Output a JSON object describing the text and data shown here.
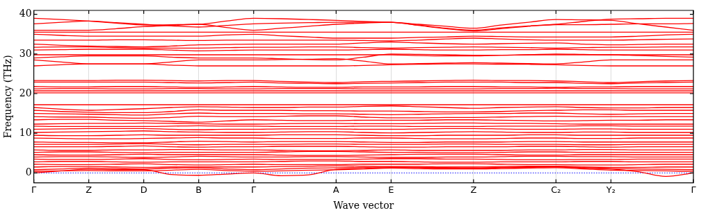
{
  "chart_data": {
    "type": "line",
    "xlabel": "Wave vector",
    "ylabel": "Frequency (THz)",
    "categories": [
      "Γ",
      null,
      "Z",
      null,
      "D",
      null,
      "B",
      null,
      "Γ",
      null,
      null,
      "A",
      null,
      "E",
      null,
      null,
      "Z",
      null,
      null,
      "C₂",
      null,
      "Y₂",
      null,
      null,
      "Γ"
    ],
    "ylim": [
      -2.5,
      41
    ],
    "yticks": [
      0,
      10,
      20,
      30,
      40
    ],
    "grid": "x",
    "legend": false,
    "marker": "none",
    "line_style": "solid",
    "ref_lines": [
      {
        "axis": "y",
        "value": 0,
        "color": "#0000ff",
        "line_style": "dotted"
      }
    ],
    "series": [
      {
        "color": "#ff0000",
        "values": [
          39,
          38.7,
          38.3,
          37.8,
          37.3,
          37.4,
          37.5,
          38.3,
          39,
          38.9,
          38.7,
          38.5,
          38.2,
          38,
          37.3,
          36.5,
          36,
          36.6,
          37.1,
          37.5,
          38.2,
          38.8,
          38.9,
          39,
          39
        ]
      },
      {
        "color": "#ff0000",
        "values": [
          37.6,
          38,
          38.3,
          37.9,
          37.5,
          37.1,
          36.8,
          37.2,
          37.6,
          37.8,
          37.9,
          38,
          38,
          38,
          37.2,
          36.4,
          35.8,
          36.4,
          37,
          37.4,
          37.4,
          37.5,
          37.6,
          37.6,
          37.7
        ]
      },
      {
        "color": "#ff0000",
        "values": [
          36,
          36,
          36,
          36.4,
          36.9,
          37.2,
          37.5,
          36.7,
          36,
          36.5,
          37,
          37.5,
          37.8,
          38,
          37.5,
          37,
          36.5,
          37.3,
          38,
          38.7,
          38.6,
          38.5,
          37.6,
          36.8,
          36
        ]
      },
      {
        "color": "#ff0000",
        "values": [
          35.5,
          35.5,
          35.5,
          35.5,
          35.5,
          35.5,
          35.5,
          35.5,
          35.5,
          35.5,
          35.5,
          35.5,
          35.5,
          35.5,
          35.5,
          35.5,
          35.5,
          35.5,
          35.5,
          35.5,
          35.5,
          35.5,
          35.5,
          35.5,
          35.5
        ]
      },
      {
        "color": "#ff0000",
        "values": [
          35,
          34.7,
          34.5,
          34.5,
          34.5,
          34.5,
          34.5,
          34.8,
          35,
          34.6,
          34.3,
          34,
          34,
          34,
          34.2,
          34.3,
          34.5,
          34.4,
          34.3,
          34.3,
          34.3,
          34.3,
          34.5,
          34.8,
          35
        ]
      },
      {
        "color": "#ff0000",
        "values": [
          33.5,
          33.5,
          33.5,
          33.6,
          33.6,
          33.5,
          33.4,
          33.5,
          33.5,
          33.5,
          33.5,
          33.5,
          33.4,
          33.3,
          33.5,
          33.8,
          34,
          33.8,
          33.6,
          33.5,
          33.5,
          33.5,
          33.6,
          33.7,
          33.8
        ]
      },
      {
        "color": "#ff0000",
        "values": [
          32.5,
          32.2,
          32,
          31.9,
          31.8,
          32,
          32.3,
          32.4,
          32.5,
          32.5,
          32.5,
          32.5,
          32.8,
          33,
          32.8,
          32.6,
          32.5,
          32.6,
          32.7,
          32.8,
          32.5,
          32.3,
          32.4,
          32.5,
          32.5
        ]
      },
      {
        "color": "#ff0000",
        "values": [
          31.7,
          31.8,
          31.8,
          31.6,
          31.5,
          31.5,
          31.5,
          31.6,
          31.7,
          31.7,
          31.8,
          31.8,
          31.6,
          31.5,
          31.6,
          31.7,
          31.8,
          31.7,
          31.6,
          31.5,
          31.6,
          31.7,
          31.7,
          31.8,
          31.8
        ]
      },
      {
        "color": "#ff0000",
        "values": [
          31,
          31.1,
          31.2,
          31.2,
          31.2,
          31,
          30.8,
          30.9,
          31,
          31,
          31,
          31,
          31.1,
          31.2,
          31.1,
          31,
          31,
          31.1,
          31.1,
          31.2,
          31.1,
          31,
          31,
          31,
          31
        ]
      },
      {
        "color": "#ff0000",
        "values": [
          29.8,
          29.8,
          29.8,
          29.8,
          29.8,
          29.8,
          29.8,
          29.8,
          29.8,
          29.8,
          29.8,
          29.8,
          29.8,
          29.8,
          29.6,
          29.5,
          29.5,
          29.7,
          29.8,
          30,
          29.9,
          29.8,
          29.8,
          29.8,
          29.8
        ]
      },
      {
        "color": "#ff0000",
        "values": [
          29,
          29.3,
          29.5,
          29.5,
          29.5,
          29.2,
          29,
          29,
          29,
          28.8,
          28.6,
          28.5,
          29.2,
          30,
          29.9,
          29.8,
          29.7,
          29.7,
          29.8,
          29.8,
          29.8,
          29.8,
          29.6,
          29.4,
          29.2
        ]
      },
      {
        "color": "#ff0000",
        "values": [
          28.5,
          28,
          27.5,
          27.5,
          27.5,
          28,
          28.5,
          28.5,
          28.5,
          28.6,
          28.7,
          28.8,
          28.2,
          27.5,
          27.6,
          27.7,
          27.8,
          27.7,
          27.6,
          27.5,
          28,
          28.5,
          28.5,
          28.5,
          28.5
        ]
      },
      {
        "color": "#ff0000",
        "values": [
          27,
          27.3,
          27.5,
          27.5,
          27.5,
          27.2,
          27,
          27,
          27,
          27,
          27,
          27,
          27.1,
          27.3,
          27.4,
          27.5,
          27.5,
          27.4,
          27.4,
          27.3,
          27.1,
          27,
          27,
          27,
          27
        ]
      },
      {
        "color": "#ff0000",
        "values": [
          23.3,
          23.3,
          23.3,
          23.4,
          23.4,
          23.3,
          23.2,
          23.3,
          23.3,
          23.1,
          22.9,
          22.8,
          23,
          23.1,
          23.2,
          23.3,
          23.4,
          23.3,
          23.3,
          23.2,
          23,
          22.8,
          23,
          23.2,
          23.3
        ]
      },
      {
        "color": "#ff0000",
        "values": [
          22.9,
          22.9,
          22.9,
          22.9,
          22.9,
          22.8,
          22.7,
          22.8,
          22.9,
          22.7,
          22.6,
          22.5,
          22.6,
          22.7,
          22.8,
          22.9,
          22.9,
          22.9,
          22.8,
          22.8,
          22.6,
          22.5,
          22.7,
          22.8,
          22.9
        ]
      },
      {
        "color": "#ff0000",
        "values": [
          21.8,
          21.7,
          21.7,
          21.8,
          21.8,
          21.7,
          21.6,
          21.7,
          21.8,
          21.7,
          21.6,
          21.6,
          21.7,
          21.7,
          21.7,
          21.8,
          21.8,
          21.7,
          21.7,
          21.6,
          21.7,
          21.7,
          21.8,
          21.8,
          21.8
        ]
      },
      {
        "color": "#ff0000",
        "values": [
          21.2,
          21.3,
          21.3,
          21.2,
          21.2,
          21.3,
          21.3,
          21.2,
          21.2,
          21.3,
          21.3,
          21.3,
          21.2,
          21.2,
          21.2,
          21.2,
          21.2,
          21.3,
          21.3,
          21.4,
          21.3,
          21.3,
          21.2,
          21.2,
          21.2
        ]
      },
      {
        "color": "#ff0000",
        "values": [
          20.7,
          20.7,
          20.7,
          20.7,
          20.7,
          20.7,
          20.7,
          20.7,
          20.7,
          20.7,
          20.7,
          20.7,
          20.7,
          20.7,
          20.7,
          20.7,
          20.7,
          20.7,
          20.7,
          20.7,
          20.7,
          20.7,
          20.7,
          20.7,
          20.7
        ]
      },
      {
        "color": "#ff0000",
        "values": [
          20.2,
          20.2,
          20.2,
          20.2,
          20.2,
          20.2,
          20.2,
          20.2,
          20.2,
          20.2,
          20.2,
          20.2,
          20.2,
          20.2,
          20.2,
          20.2,
          20.2,
          20.2,
          20.2,
          20.2,
          20.2,
          20.2,
          20.2,
          20.2,
          20.2
        ]
      },
      {
        "color": "#ff0000",
        "values": [
          17.2,
          17.2,
          17.2,
          17.2,
          17.2,
          17.2,
          17.2,
          17.2,
          17.2,
          17.2,
          17.2,
          17.2,
          17.2,
          17.2,
          17.2,
          17.2,
          17.2,
          17.2,
          17.2,
          17.2,
          17.2,
          17.2,
          17.2,
          17.2,
          17.2
        ]
      },
      {
        "color": "#ff0000",
        "values": [
          16.5,
          16.1,
          15.8,
          16,
          16.2,
          16.5,
          16.7,
          16.6,
          16.5,
          16.5,
          16.6,
          16.6,
          16.8,
          16.9,
          16.7,
          16.5,
          16.3,
          16.5,
          16.6,
          16.7,
          16.5,
          16.4,
          16.4,
          16.5,
          16.5
        ]
      },
      {
        "color": "#ff0000",
        "values": [
          15.8,
          15.5,
          15.3,
          15.2,
          15.2,
          15.5,
          15.9,
          15.8,
          15.8,
          15.8,
          15.7,
          15.7,
          15.6,
          15.6,
          15.5,
          15.4,
          15.4,
          15.5,
          15.7,
          15.8,
          15.9,
          15.9,
          15.8,
          15.8,
          15.8
        ]
      },
      {
        "color": "#ff0000",
        "values": [
          15,
          14.9,
          14.8,
          14.7,
          14.6,
          14.9,
          15.1,
          15,
          15,
          15,
          14.9,
          14.9,
          14.8,
          14.7,
          14.8,
          14.9,
          15,
          15,
          15.1,
          15.1,
          14.9,
          14.8,
          14.9,
          15,
          15
        ]
      },
      {
        "color": "#ff0000",
        "values": [
          14.2,
          14.1,
          14.1,
          13.9,
          13.8,
          14,
          14.3,
          14.2,
          14.2,
          14.3,
          14.4,
          14.4,
          14.1,
          13.9,
          13.9,
          14,
          14,
          14.1,
          14.2,
          14.3,
          14.2,
          14.2,
          14.2,
          14.2,
          14.2
        ]
      },
      {
        "color": "#ff0000",
        "values": [
          13.4,
          13.5,
          13.5,
          13.3,
          13.2,
          13,
          12.8,
          13.1,
          13.4,
          13.3,
          13.2,
          13.2,
          13.3,
          13.3,
          13.3,
          13.4,
          13.4,
          13.3,
          13.2,
          13.1,
          13.2,
          13.3,
          13.3,
          13.4,
          13.4
        ]
      },
      {
        "color": "#ff0000",
        "values": [
          12.3,
          12.4,
          12.5,
          12.5,
          12.6,
          12.5,
          12.4,
          12.3,
          12.3,
          12.4,
          12.5,
          12.5,
          12.4,
          12.4,
          12.5,
          12.6,
          12.6,
          12.5,
          12.5,
          12.4,
          12.3,
          12.3,
          12.3,
          12.3,
          12.3
        ]
      },
      {
        "color": "#ff0000",
        "values": [
          11.8,
          11.7,
          11.7,
          11.7,
          11.7,
          11.8,
          11.9,
          11.8,
          11.8,
          11.7,
          11.7,
          11.7,
          11.8,
          11.8,
          11.7,
          11.7,
          11.7,
          11.8,
          11.8,
          11.8,
          11.9,
          11.9,
          11.8,
          11.8,
          11.8
        ]
      },
      {
        "color": "#ff0000",
        "values": [
          11,
          11.1,
          11.2,
          11.2,
          11.2,
          11,
          10.9,
          11,
          11,
          11.1,
          11.1,
          11.1,
          11,
          11,
          11.1,
          11.2,
          11.2,
          11.1,
          11,
          11,
          11.1,
          11.1,
          11,
          11,
          11
        ]
      },
      {
        "color": "#ff0000",
        "values": [
          10.2,
          10.3,
          10.4,
          10.5,
          10.6,
          10.4,
          10.3,
          10.2,
          10.2,
          10.3,
          10.4,
          10.4,
          10.2,
          10.1,
          10.2,
          10.3,
          10.4,
          10.3,
          10.2,
          10.2,
          10.3,
          10.3,
          10.2,
          10.2,
          10.2
        ]
      },
      {
        "color": "#ff0000",
        "values": [
          9.5,
          9.4,
          9.4,
          9.5,
          9.6,
          9.5,
          9.5,
          9.5,
          9.5,
          9.6,
          9.6,
          9.6,
          9.5,
          9.4,
          9.4,
          9.5,
          9.5,
          9.5,
          9.6,
          9.6,
          9.5,
          9.5,
          9.5,
          9.5,
          9.5
        ]
      },
      {
        "color": "#ff0000",
        "values": [
          8.8,
          8.7,
          8.6,
          8.6,
          8.7,
          8.8,
          8.9,
          8.8,
          8.8,
          8.7,
          8.7,
          8.7,
          8.8,
          8.8,
          8.7,
          8.6,
          8.6,
          8.7,
          8.8,
          8.8,
          8.7,
          8.7,
          8.8,
          8.8,
          8.8
        ]
      },
      {
        "color": "#ff0000",
        "values": [
          7.8,
          7.7,
          7.7,
          7.6,
          7.6,
          7.8,
          8,
          7.9,
          7.8,
          7.9,
          7.9,
          7.9,
          7.8,
          7.7,
          7.7,
          7.8,
          7.8,
          7.8,
          7.9,
          7.9,
          7.8,
          7.8,
          7.8,
          7.8,
          7.8
        ]
      },
      {
        "color": "#ff0000",
        "values": [
          7.2,
          7.2,
          7.2,
          7.3,
          7.4,
          7.2,
          7.1,
          7.2,
          7.2,
          7.2,
          7.3,
          7.3,
          7.2,
          7.2,
          7.2,
          7.3,
          7.3,
          7.2,
          7.2,
          7.2,
          7.1,
          7.1,
          7.2,
          7.2,
          7.2
        ]
      },
      {
        "color": "#ff0000",
        "values": [
          6.6,
          6.6,
          6.6,
          6.7,
          6.8,
          6.6,
          6.5,
          6.6,
          6.6,
          6.7,
          6.7,
          6.7,
          6.6,
          6.5,
          6.5,
          6.6,
          6.6,
          6.6,
          6.7,
          6.7,
          6.6,
          6.5,
          6.6,
          6.6,
          6.6
        ]
      },
      {
        "color": "#ff0000",
        "values": [
          5.8,
          5.7,
          5.7,
          5.8,
          5.8,
          5.9,
          5.9,
          5.8,
          5.8,
          5.7,
          5.6,
          5.6,
          5.7,
          5.8,
          5.7,
          5.7,
          5.7,
          5.7,
          5.8,
          5.8,
          5.9,
          5.9,
          5.8,
          5.8,
          5.8
        ]
      },
      {
        "color": "#ff0000",
        "values": [
          5.2,
          5.3,
          5.3,
          5.2,
          5.1,
          5.2,
          5.2,
          5.2,
          5.2,
          5.3,
          5.4,
          5.4,
          5.3,
          5.2,
          5.2,
          5.1,
          5.1,
          5.2,
          5.3,
          5.3,
          5.2,
          5.2,
          5.2,
          5.2,
          5.2
        ]
      },
      {
        "color": "#ff0000",
        "values": [
          4.6,
          4.5,
          4.5,
          4.6,
          4.7,
          4.6,
          4.6,
          4.6,
          4.6,
          4.5,
          4.4,
          4.4,
          4.5,
          4.6,
          4.7,
          4.7,
          4.7,
          4.6,
          4.5,
          4.5,
          4.6,
          4.6,
          4.6,
          4.6,
          4.6
        ]
      },
      {
        "color": "#ff0000",
        "values": [
          4,
          4.1,
          4.1,
          4,
          3.9,
          4,
          4.2,
          4.1,
          4,
          4,
          4.1,
          4.1,
          4,
          3.9,
          3.9,
          4,
          4,
          4.1,
          4.2,
          4.2,
          4.1,
          4.1,
          4,
          4,
          4
        ]
      },
      {
        "color": "#ff0000",
        "values": [
          3.5,
          3.4,
          3.4,
          3.5,
          3.6,
          3.4,
          3.3,
          3.4,
          3.5,
          3.4,
          3.4,
          3.4,
          3.5,
          3.6,
          3.6,
          3.5,
          3.5,
          3.4,
          3.3,
          3.3,
          3.4,
          3.4,
          3.5,
          3.5,
          3.5
        ]
      },
      {
        "color": "#ff0000",
        "values": [
          2.8,
          2.9,
          2.9,
          2.8,
          2.7,
          2.8,
          2.8,
          2.8,
          2.8,
          2.9,
          3,
          3,
          2.9,
          2.9,
          2.8,
          2.7,
          2.7,
          2.8,
          2.8,
          2.8,
          2.9,
          2.9,
          2.8,
          2.8,
          2.8
        ]
      },
      {
        "color": "#ff0000",
        "values": [
          2.2,
          2.1,
          2.1,
          2.2,
          2.3,
          2.1,
          2,
          2.1,
          2.2,
          2.1,
          2.1,
          2.1,
          2.2,
          2.2,
          2.2,
          2.3,
          2.3,
          2.2,
          2.1,
          2.1,
          2,
          2,
          2.1,
          2.2,
          2.2
        ]
      },
      {
        "color": "#ff0000",
        "values": [
          1.5,
          1.6,
          1.6,
          1.5,
          1.4,
          1.5,
          1.5,
          1.5,
          1.5,
          1.6,
          1.7,
          1.8,
          1.7,
          1.6,
          1.6,
          1.5,
          1.5,
          1.6,
          1.7,
          1.7,
          1.5,
          1.4,
          1.4,
          1.5,
          1.5
        ]
      },
      {
        "color": "#ff0000",
        "values": [
          0.8,
          1,
          1.2,
          1.1,
          1,
          1.2,
          1.3,
          1,
          0.8,
          1,
          1.2,
          1.3,
          1.4,
          1.5,
          1.4,
          1.3,
          1.2,
          1.4,
          1.5,
          1.6,
          1.3,
          1.1,
          1,
          0.9,
          0.8
        ]
      },
      {
        "color": "#ff0000",
        "values": [
          0.4,
          0.5,
          0.6,
          0.5,
          0.5,
          0.7,
          0.9,
          0.6,
          0.4,
          0.5,
          0.7,
          0.8,
          1,
          1.2,
          1.1,
          1,
          1,
          1.1,
          1.2,
          1.3,
          1,
          0.7,
          0.6,
          0.5,
          0.4
        ]
      },
      {
        "color": "#ff0000",
        "values": [
          0,
          0.5,
          0.9,
          0.8,
          0.8,
          -0.4,
          -0.6,
          -0.3,
          0,
          -0.7,
          -0.5,
          0.9,
          1.1,
          1.3,
          1.3,
          1.2,
          1.2,
          1.3,
          1.4,
          1.5,
          1.2,
          1,
          0.3,
          -0.9,
          0
        ]
      }
    ]
  }
}
